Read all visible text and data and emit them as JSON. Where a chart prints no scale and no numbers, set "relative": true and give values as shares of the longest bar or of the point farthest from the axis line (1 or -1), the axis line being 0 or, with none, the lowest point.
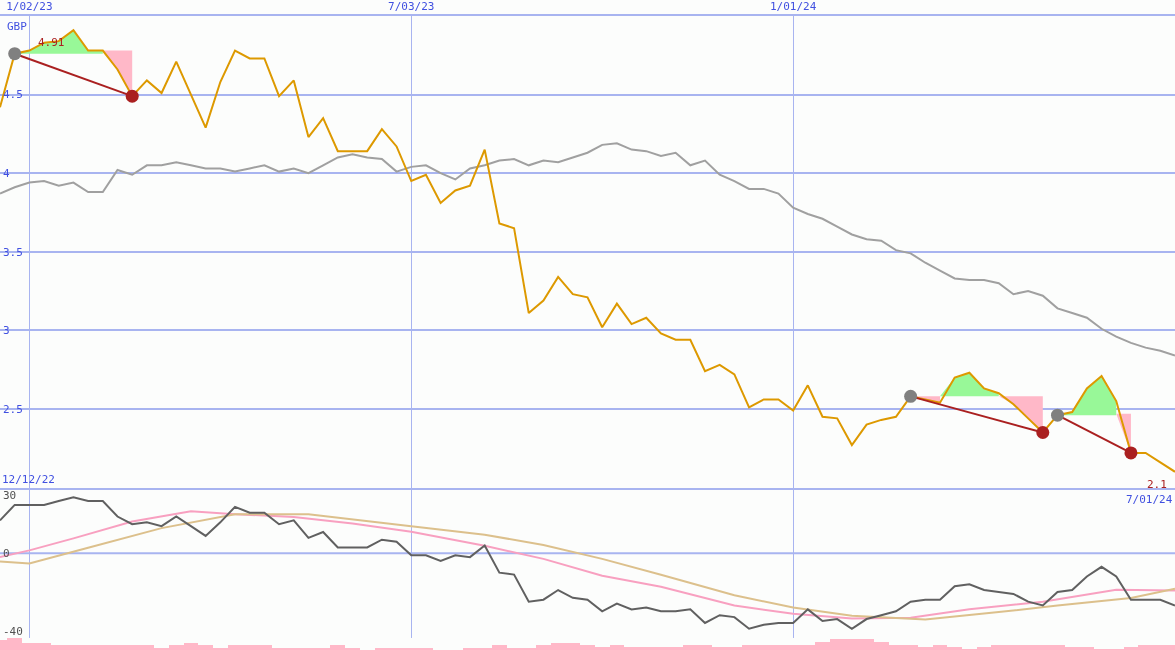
{
  "chart_data": [
    {
      "type": "line",
      "ylabel": "GBP",
      "x": [
        "2022-12-19",
        "2022-12-26",
        "2023-01-02",
        "2023-01-09",
        "2023-01-16",
        "2023-01-23",
        "2023-01-30",
        "2023-02-06",
        "2023-02-13",
        "2023-02-20",
        "2023-02-27",
        "2023-03-06",
        "2023-03-13",
        "2023-03-20",
        "2023-03-27",
        "2023-04-03",
        "2023-04-10",
        "2023-04-17",
        "2023-04-24",
        "2023-05-01",
        "2023-05-08",
        "2023-05-15",
        "2023-05-22",
        "2023-05-29",
        "2023-06-05",
        "2023-06-12",
        "2023-06-19",
        "2023-06-26",
        "2023-07-03",
        "2023-07-10",
        "2023-07-17",
        "2023-07-24",
        "2023-07-31",
        "2023-08-07",
        "2023-08-14",
        "2023-08-21",
        "2023-08-28",
        "2023-09-04",
        "2023-09-11",
        "2023-09-18",
        "2023-09-25",
        "2023-10-02",
        "2023-10-09",
        "2023-10-16",
        "2023-10-23",
        "2023-10-30",
        "2023-11-06",
        "2023-11-13",
        "2023-11-20",
        "2023-11-27",
        "2023-12-04",
        "2023-12-11",
        "2023-12-18",
        "2023-12-25",
        "2024-01-01",
        "2024-01-08",
        "2024-01-15",
        "2024-01-22",
        "2024-01-29",
        "2024-02-05",
        "2024-02-12",
        "2024-02-19",
        "2024-02-26",
        "2024-03-04",
        "2024-03-11",
        "2024-03-18",
        "2024-03-25",
        "2024-04-01",
        "2024-04-08",
        "2024-04-15",
        "2024-04-22",
        "2024-04-29",
        "2024-05-06",
        "2024-05-13",
        "2024-05-20",
        "2024-05-27",
        "2024-06-03",
        "2024-06-10",
        "2024-06-17",
        "2024-06-24",
        "2024-07-01"
      ],
      "series": [
        {
          "type": "area",
          "color": "#98f898",
          "x": [
            "2022-12-26",
            "2023-01-02",
            "2023-01-09",
            "2023-01-16",
            "2023-01-23",
            "2023-01-30",
            "2023-02-06"
          ],
          "values": [
            4.76,
            4.78,
            4.83,
            4.84,
            4.91,
            4.78,
            4.78
          ]
        },
        {
          "type": "area",
          "color": "#ffb8c8",
          "x": [
            "2023-02-06",
            "2023-02-13",
            "2023-02-20",
            "2023-02-20"
          ],
          "values": [
            4.78,
            4.66,
            4.49,
            4.78
          ]
        },
        {
          "type": "area",
          "color": "#ffb8c8",
          "x": [
            "2024-02-26",
            "2024-03-04",
            "2024-03-11"
          ],
          "values": [
            2.58,
            2.56,
            2.54
          ]
        },
        {
          "type": "area",
          "color": "#98f898",
          "x": [
            "2024-03-11",
            "2024-03-18",
            "2024-03-25",
            "2024-04-01",
            "2024-04-08"
          ],
          "values": [
            2.58,
            2.7,
            2.73,
            2.63,
            2.6
          ]
        },
        {
          "type": "area",
          "color": "#ffb8c8",
          "x": [
            "2024-04-08",
            "2024-04-15",
            "2024-04-22",
            "2024-04-29",
            "2024-04-29"
          ],
          "values": [
            2.58,
            2.53,
            2.44,
            2.35,
            2.58
          ]
        },
        {
          "type": "area",
          "color": "#98f898",
          "x": [
            "2024-05-06",
            "2024-05-13",
            "2024-05-20",
            "2024-05-27",
            "2024-06-03"
          ],
          "values": [
            2.46,
            2.48,
            2.63,
            2.71,
            2.55
          ]
        },
        {
          "type": "area",
          "color": "#ffb8c8",
          "x": [
            "2024-06-03",
            "2024-06-10",
            "2024-06-10"
          ],
          "values": [
            2.47,
            2.22,
            2.47
          ]
        },
        {
          "color": "#a0a0a0",
          "values": [
            3.87,
            3.91,
            3.94,
            3.95,
            3.92,
            3.94,
            3.88,
            3.88,
            4.02,
            3.99,
            4.05,
            4.05,
            4.07,
            4.05,
            4.03,
            4.03,
            4.01,
            4.03,
            4.05,
            4.01,
            4.03,
            4.0,
            4.05,
            4.1,
            4.12,
            4.1,
            4.09,
            4.01,
            4.04,
            4.05,
            4.0,
            3.96,
            4.03,
            4.05,
            4.08,
            4.09,
            4.05,
            4.08,
            4.07,
            4.1,
            4.13,
            4.18,
            4.19,
            4.15,
            4.14,
            4.11,
            4.13,
            4.05,
            4.08,
            3.99,
            3.95,
            3.9,
            3.9,
            3.87,
            3.78,
            3.74,
            3.71,
            3.66,
            3.61,
            3.58,
            3.57,
            3.51,
            3.49,
            3.43,
            3.38,
            3.33,
            3.32,
            3.32,
            3.3,
            3.23,
            3.25,
            3.22,
            3.14,
            3.11,
            3.08,
            3.01,
            2.96,
            2.92,
            2.89,
            2.87,
            2.84
          ]
        },
        {
          "color": "#dd9900",
          "values": [
            4.42,
            4.76,
            4.78,
            4.83,
            4.84,
            4.91,
            4.78,
            4.78,
            4.66,
            4.49,
            4.59,
            4.51,
            4.71,
            4.5,
            4.29,
            4.58,
            4.78,
            4.73,
            4.73,
            4.49,
            4.59,
            4.23,
            4.35,
            4.14,
            4.14,
            4.14,
            4.28,
            4.17,
            3.95,
            3.99,
            3.81,
            3.89,
            3.92,
            4.15,
            3.68,
            3.65,
            3.11,
            3.19,
            3.34,
            3.23,
            3.21,
            3.02,
            3.17,
            3.04,
            3.08,
            2.98,
            2.94,
            2.94,
            2.74,
            2.78,
            2.72,
            2.51,
            2.56,
            2.56,
            2.49,
            2.65,
            2.45,
            2.44,
            2.27,
            2.4,
            2.43,
            2.45,
            2.58,
            2.56,
            2.54,
            2.7,
            2.73,
            2.63,
            2.6,
            2.53,
            2.44,
            2.35,
            2.46,
            2.48,
            2.63,
            2.71,
            2.55,
            2.22,
            2.22,
            2.16,
            2.1
          ]
        },
        {
          "color": "#aa2020",
          "marker": "circle",
          "colors": [
            "#808080",
            "#aa2020"
          ],
          "x": [
            "2022-12-26",
            "2023-02-20"
          ],
          "values": [
            4.76,
            4.49
          ]
        },
        {
          "color": "#aa2020",
          "marker": "circle",
          "colors": [
            "#808080",
            "#aa2020"
          ],
          "x": [
            "2024-02-26",
            "2024-04-29"
          ],
          "values": [
            2.58,
            2.35
          ]
        },
        {
          "color": "#aa2020",
          "marker": "circle",
          "colors": [
            "#808080",
            "#aa2020"
          ],
          "x": [
            "2024-05-06",
            "2024-06-10"
          ],
          "values": [
            2.46,
            2.22
          ]
        }
      ],
      "xlim": [
        "2022-12-19",
        "2024-07-01"
      ],
      "xticks": [
        {
          "value": "2023-01-02",
          "label": "1/02/23"
        },
        {
          "value": "2023-07-03",
          "label": "7/03/23"
        },
        {
          "value": "2024-01-01",
          "label": "1/01/24"
        }
      ],
      "ylim": [
        2.0,
        5.0
      ],
      "yticks": [
        2.5,
        3,
        3.5,
        4,
        4.5
      ],
      "grid": true,
      "annotations": [
        "12/12/22",
        "7/01/24",
        {
          "text": "4.91",
          "x": "2023-01-23",
          "y": 4.91
        },
        {
          "text": "2.1",
          "x": "2024-07-01",
          "y": 2.1
        }
      ]
    },
    {
      "type": "line",
      "series": [
        {
          "color": "#f8a0c0",
          "x": [
            "2022-12-19",
            "2023-01-02",
            "2023-01-23",
            "2023-02-20",
            "2023-03-20",
            "2023-04-10",
            "2023-05-08",
            "2023-06-05",
            "2023-07-03",
            "2023-08-07",
            "2023-09-04",
            "2023-10-02",
            "2023-10-30",
            "2023-12-04",
            "2024-01-01",
            "2024-01-29",
            "2024-02-26",
            "2024-03-25",
            "2024-04-29",
            "2024-06-03",
            "2024-07-01"
          ],
          "values": [
            -2,
            1.5,
            7.7,
            16.4,
            21.7,
            20.2,
            18.8,
            15.4,
            11.1,
            3.9,
            -2.9,
            -11.6,
            -17.3,
            -27,
            -31.3,
            -33.7,
            -33.3,
            -28.9,
            -25.1,
            -18.8,
            -19.3
          ]
        },
        {
          "color": "#dcc08c",
          "x": [
            "2022-12-19",
            "2023-01-02",
            "2023-01-30",
            "2023-03-06",
            "2023-04-10",
            "2023-05-15",
            "2023-07-03",
            "2023-08-07",
            "2023-09-04",
            "2023-10-02",
            "2023-10-30",
            "2023-12-04",
            "2024-01-01",
            "2024-01-29",
            "2024-03-04",
            "2024-04-08",
            "2024-05-06",
            "2024-06-10",
            "2024-07-01"
          ],
          "values": [
            -4.3,
            -5.3,
            2.9,
            13,
            20.2,
            20.2,
            14,
            9.6,
            4.3,
            -2.9,
            -11.1,
            -21.7,
            -28,
            -32.3,
            -34.2,
            -30.4,
            -27,
            -23.1,
            -18.3
          ]
        },
        {
          "color": "#606060",
          "x": [
            "2022-12-19",
            "2022-12-26",
            "2023-01-02",
            "2023-01-09",
            "2023-01-16",
            "2023-01-23",
            "2023-01-30",
            "2023-02-06",
            "2023-02-13",
            "2023-02-20",
            "2023-02-27",
            "2023-03-06",
            "2023-03-13",
            "2023-03-20",
            "2023-03-27",
            "2023-04-03",
            "2023-04-10",
            "2023-04-17",
            "2023-04-24",
            "2023-05-01",
            "2023-05-08",
            "2023-05-15",
            "2023-05-22",
            "2023-05-29",
            "2023-06-05",
            "2023-06-12",
            "2023-06-19",
            "2023-06-26",
            "2023-07-03",
            "2023-07-10",
            "2023-07-17",
            "2023-07-24",
            "2023-07-31",
            "2023-08-07",
            "2023-08-14",
            "2023-08-21",
            "2023-08-28",
            "2023-09-04",
            "2023-09-11",
            "2023-09-18",
            "2023-09-25",
            "2023-10-02",
            "2023-10-09",
            "2023-10-16",
            "2023-10-23",
            "2023-10-30",
            "2023-11-06",
            "2023-11-13",
            "2023-11-20",
            "2023-11-27",
            "2023-12-04",
            "2023-12-11",
            "2023-12-18",
            "2023-12-25",
            "2024-01-01",
            "2024-01-08",
            "2024-01-15",
            "2024-01-22",
            "2024-01-29",
            "2024-02-05",
            "2024-02-12",
            "2024-02-19",
            "2024-02-26",
            "2024-03-04",
            "2024-03-11",
            "2024-03-18",
            "2024-03-25",
            "2024-04-01",
            "2024-04-08",
            "2024-04-15",
            "2024-04-22",
            "2024-04-29",
            "2024-05-06",
            "2024-05-13",
            "2024-05-20",
            "2024-05-27",
            "2024-06-03",
            "2024-06-10",
            "2024-06-17",
            "2024-06-24",
            "2024-07-01"
          ],
          "values": [
            17,
            25,
            25,
            25,
            27,
            29,
            27,
            27,
            19,
            15,
            16,
            14,
            19,
            14,
            9,
            16,
            24,
            21,
            21,
            15,
            17,
            8,
            11,
            3,
            3,
            3,
            7,
            6,
            -1,
            -1,
            -4,
            -1,
            -2,
            4,
            -10,
            -11,
            -25,
            -24,
            -19,
            -23,
            -24,
            -30,
            -26,
            -29,
            -28,
            -30,
            -30,
            -29,
            -36,
            -32,
            -33,
            -39,
            -37,
            -36,
            -36,
            -29,
            -35,
            -34,
            -39,
            -34,
            -32,
            -30,
            -25,
            -24,
            -24,
            -17,
            -16,
            -19,
            -20,
            -21,
            -25,
            -27,
            -20,
            -19,
            -12,
            -7,
            -12,
            -24,
            -24,
            -24,
            -27
          ]
        }
      ],
      "xlim": [
        "2022-12-19",
        "2024-07-01"
      ],
      "xticks": [
        {
          "value": "2023-01-02",
          "label": null
        },
        {
          "value": "2023-07-03",
          "label": null
        },
        {
          "value": "2024-01-01",
          "label": null
        }
      ],
      "ylim": [
        -50,
        34
      ],
      "yticks": [
        30,
        0,
        -40
      ],
      "grid": "x",
      "tick_labels": "y",
      "ref_lines": [
        {
          "axis": "y",
          "value": 0,
          "color": "#a8b4f0"
        }
      ]
    },
    {
      "type": "bar",
      "relative": true,
      "color": "#ffb8c8",
      "tick_labels": false,
      "x": [
        "2022-12-19",
        "2022-12-26",
        "2023-01-02",
        "2023-01-09",
        "2023-01-16",
        "2023-01-23",
        "2023-01-30",
        "2023-02-06",
        "2023-02-13",
        "2023-02-20",
        "2023-02-27",
        "2023-03-06",
        "2023-03-13",
        "2023-03-20",
        "2023-03-27",
        "2023-04-03",
        "2023-04-10",
        "2023-04-17",
        "2023-04-24",
        "2023-05-01",
        "2023-05-08",
        "2023-05-15",
        "2023-05-22",
        "2023-05-29",
        "2023-06-05",
        "2023-06-12",
        "2023-06-19",
        "2023-06-26",
        "2023-07-03",
        "2023-07-10",
        "2023-07-17",
        "2023-07-24",
        "2023-07-31",
        "2023-08-07",
        "2023-08-14",
        "2023-08-21",
        "2023-08-28",
        "2023-09-04",
        "2023-09-11",
        "2023-09-18",
        "2023-09-25",
        "2023-10-02",
        "2023-10-09",
        "2023-10-16",
        "2023-10-23",
        "2023-10-30",
        "2023-11-06",
        "2023-11-13",
        "2023-11-20",
        "2023-11-27",
        "2023-12-04",
        "2023-12-11",
        "2023-12-18",
        "2023-12-25",
        "2024-01-01",
        "2024-01-08",
        "2024-01-15",
        "2024-01-22",
        "2024-01-29",
        "2024-02-05",
        "2024-02-12",
        "2024-02-19",
        "2024-02-26",
        "2024-03-04",
        "2024-03-11",
        "2024-03-18",
        "2024-03-25",
        "2024-04-01",
        "2024-04-08",
        "2024-04-15",
        "2024-04-22",
        "2024-04-29",
        "2024-05-06",
        "2024-05-13",
        "2024-05-20",
        "2024-05-27",
        "2024-06-03",
        "2024-06-10",
        "2024-06-17",
        "2024-06-24",
        "2024-07-01"
      ],
      "xlim": [
        "2022-12-19",
        "2024-07-01"
      ],
      "values": [
        0.86,
        1,
        0.6,
        0.6,
        0.4,
        0.4,
        0.4,
        0.4,
        0.4,
        0.4,
        0.4,
        0.15,
        0.4,
        0.6,
        0.4,
        0.15,
        0.4,
        0.4,
        0.4,
        0.15,
        0.15,
        0.15,
        0.15,
        0.4,
        0.15,
        0,
        0.15,
        0.15,
        0.15,
        0.15,
        0,
        0,
        0.15,
        0.15,
        0.4,
        0.15,
        0.15,
        0.4,
        0.6,
        0.6,
        0.46,
        0.27,
        0.46,
        0.27,
        0.27,
        0.27,
        0.27,
        0.46,
        0.46,
        0.27,
        0.27,
        0.46,
        0.46,
        0.46,
        0.46,
        0.46,
        0.69,
        0.93,
        0.93,
        0.93,
        0.69,
        0.46,
        0.46,
        0.27,
        0.46,
        0.27,
        0.1,
        0.27,
        0.46,
        0.46,
        0.46,
        0.46,
        0.46,
        0.27,
        0.27,
        0.1,
        0.1,
        0.27,
        0.46,
        0.46,
        0.46
      ]
    }
  ]
}
